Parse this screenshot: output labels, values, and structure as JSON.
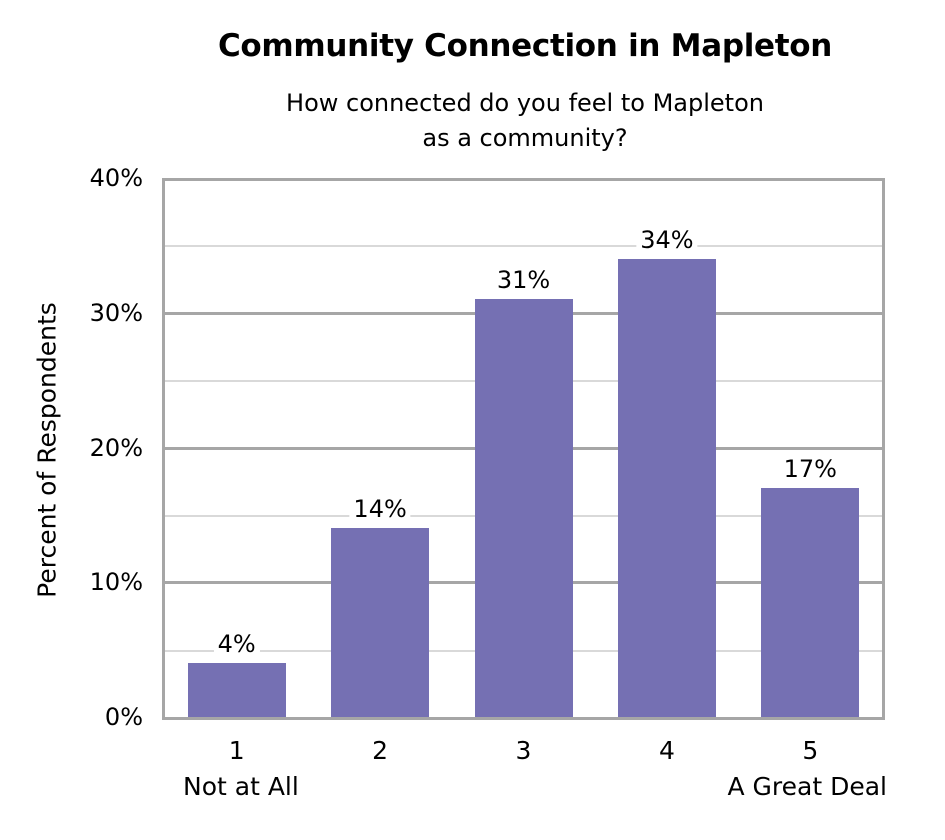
{
  "chart_data": {
    "type": "bar",
    "title": "Community Connection in Mapleton",
    "subtitle_lines": [
      "How connected do you feel to Mapleton",
      "as a community?"
    ],
    "xlabel": "",
    "ylabel": "Percent of Respondents",
    "categories": [
      "1",
      "2",
      "3",
      "4",
      "5"
    ],
    "category_sublabels": {
      "first": "Not at All",
      "last": "A Great Deal"
    },
    "values": [
      4,
      14,
      31,
      34,
      17
    ],
    "value_labels": [
      "4%",
      "14%",
      "31%",
      "34%",
      "17%"
    ],
    "ylim": [
      0,
      40
    ],
    "yticks": [
      "0%",
      "10%",
      "20%",
      "30%",
      "40%"
    ],
    "grid": true,
    "legend": "none",
    "bar_color": "#7570B3"
  }
}
